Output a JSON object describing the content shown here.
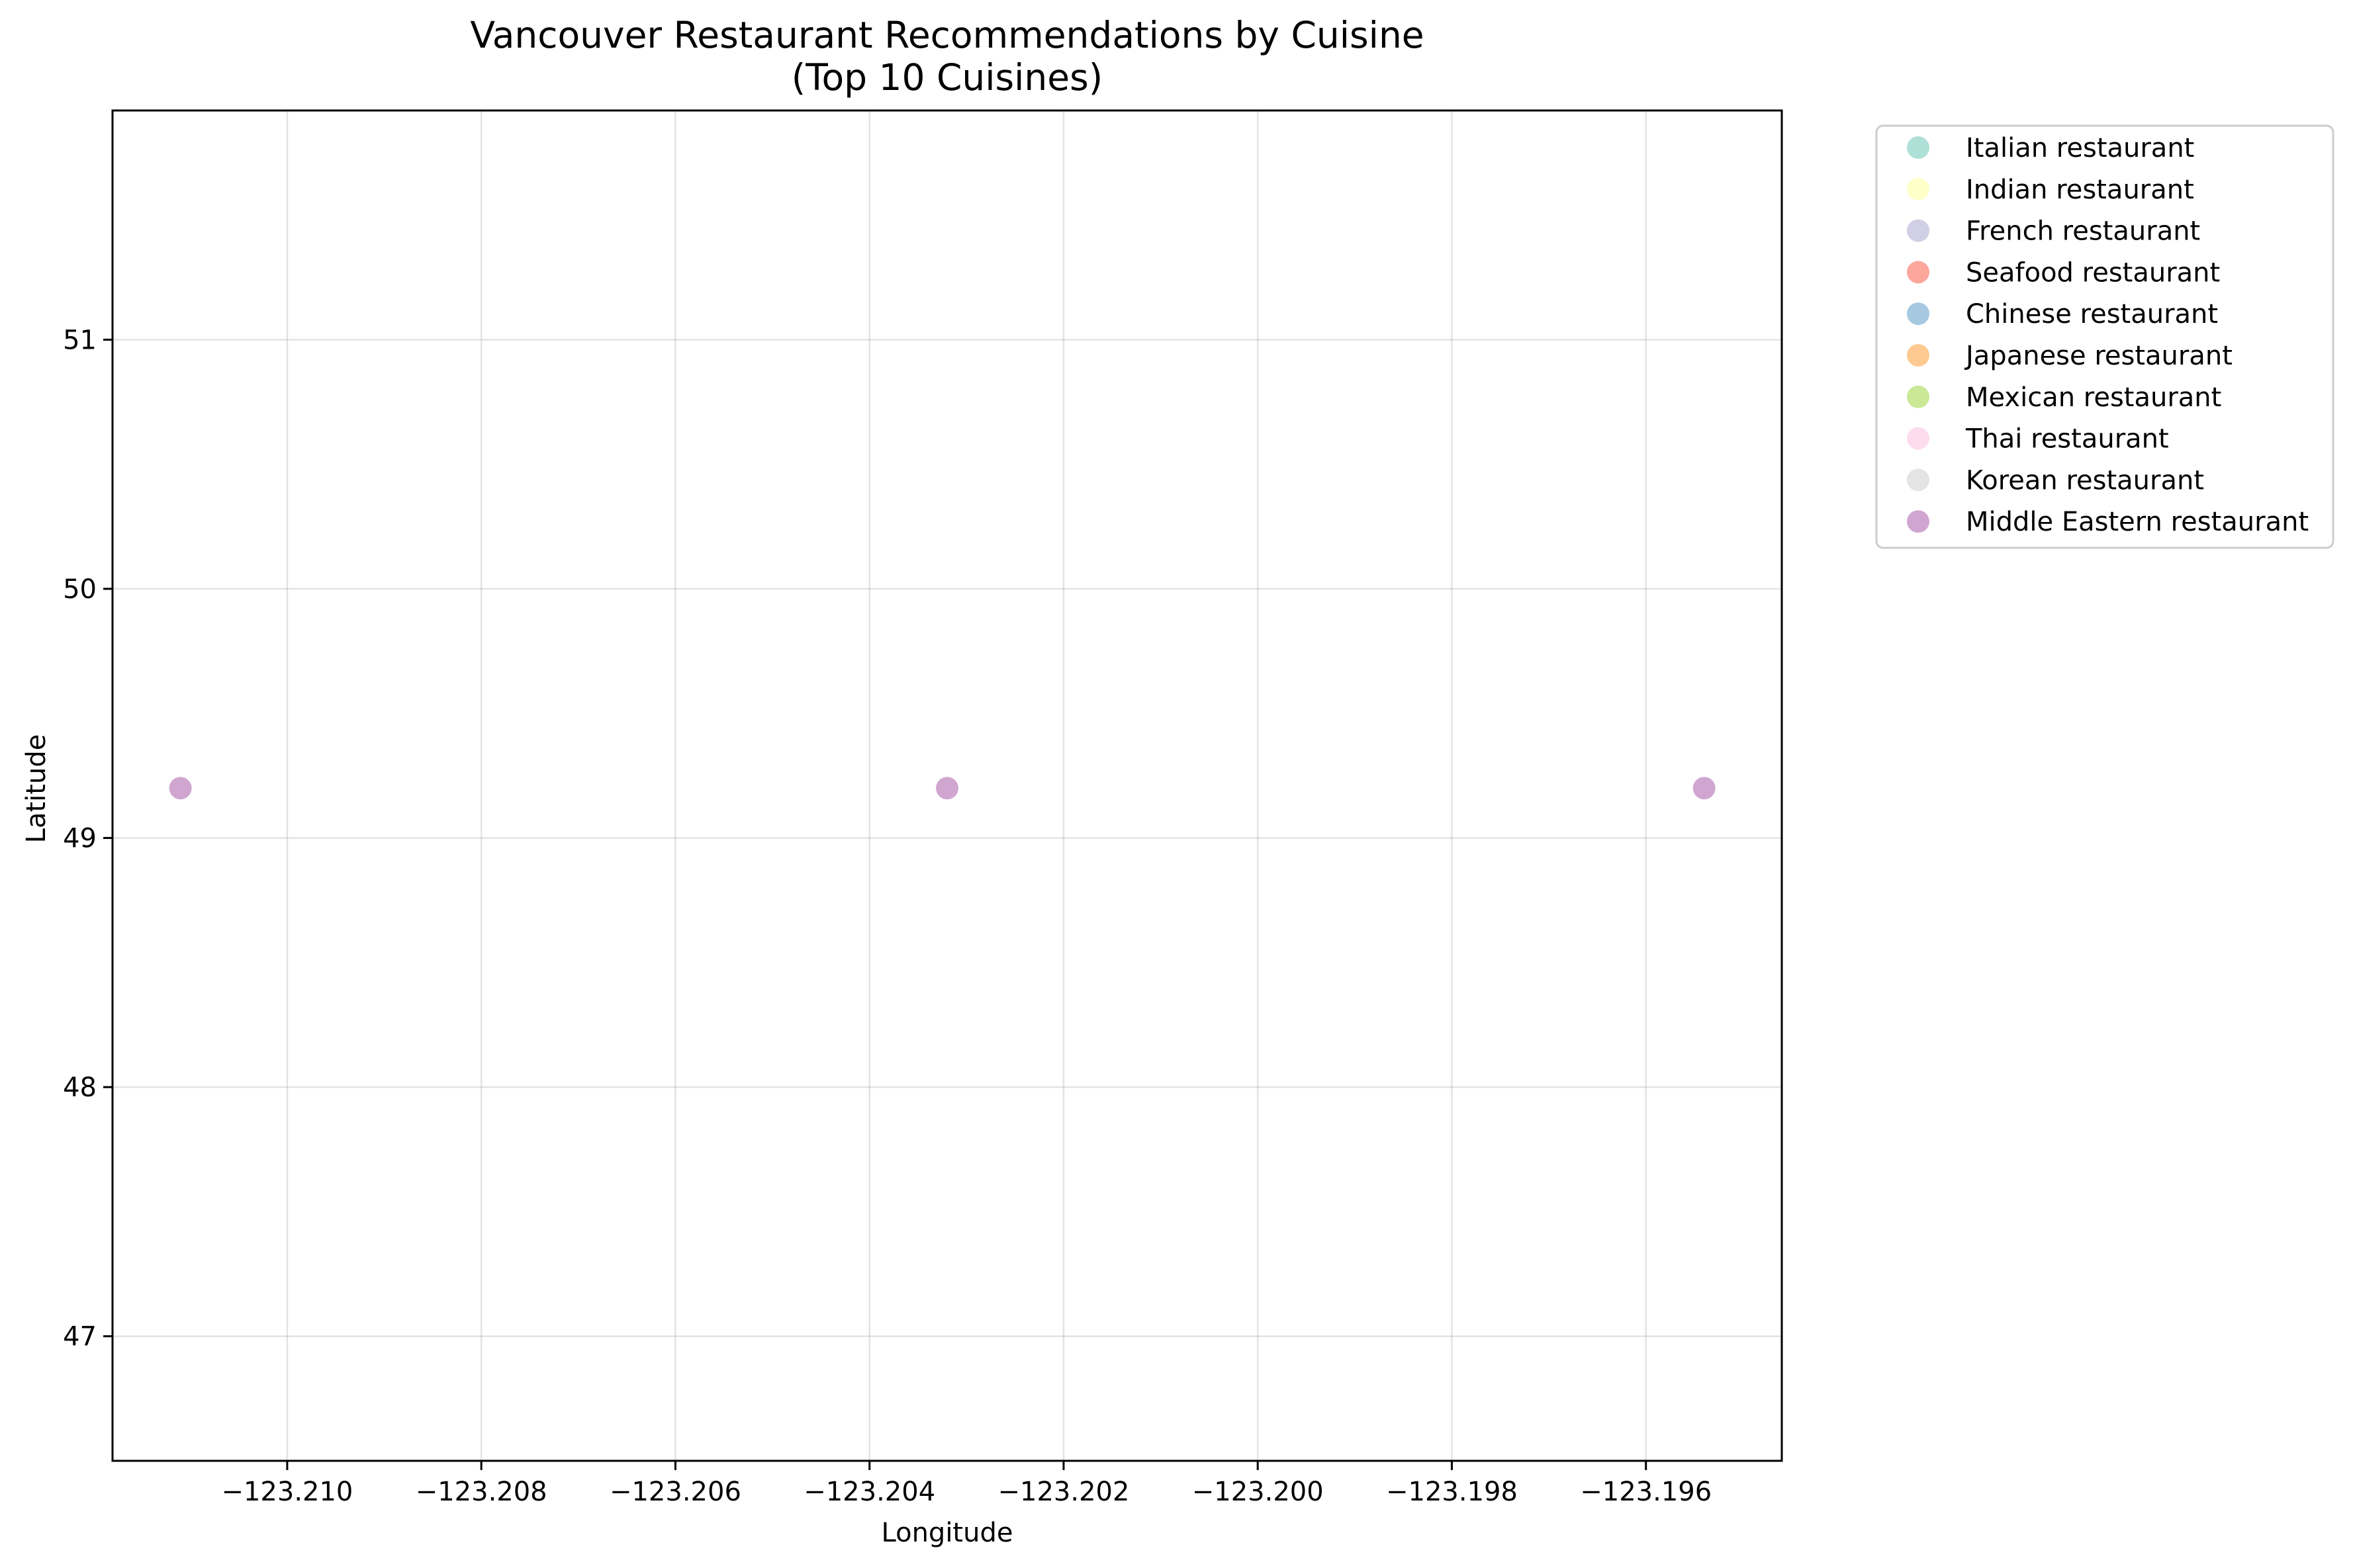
{
  "chart_data": {
    "type": "scatter",
    "title": "Vancouver Restaurant Recommendations by Cuisine",
    "subtitle": "(Top 10 Cuisines)",
    "xlabel": "Longitude",
    "ylabel": "Latitude",
    "xlim": [
      -123.2118,
      -123.1946
    ],
    "ylim": [
      46.5,
      51.92
    ],
    "xticks": [
      -123.21,
      -123.208,
      -123.206,
      -123.204,
      -123.202,
      -123.2,
      -123.198,
      -123.196
    ],
    "xtick_labels": [
      "−123.210",
      "−123.208",
      "−123.206",
      "−123.204",
      "−123.202",
      "−123.200",
      "−123.198",
      "−123.196"
    ],
    "yticks": [
      47,
      48,
      49,
      50,
      51
    ],
    "ytick_labels": [
      "47",
      "48",
      "49",
      "50",
      "51"
    ],
    "grid": true,
    "legend_position": "outside-right-top",
    "series": [
      {
        "name": "Italian restaurant",
        "color": "#8dd3c7",
        "points": []
      },
      {
        "name": "Indian restaurant",
        "color": "#ffffb3",
        "points": []
      },
      {
        "name": "French restaurant",
        "color": "#bebada",
        "points": []
      },
      {
        "name": "Seafood restaurant",
        "color": "#fb8072",
        "points": []
      },
      {
        "name": "Chinese restaurant",
        "color": "#80b1d3",
        "points": []
      },
      {
        "name": "Japanese restaurant",
        "color": "#fdb462",
        "points": []
      },
      {
        "name": "Mexican restaurant",
        "color": "#b3de69",
        "points": []
      },
      {
        "name": "Thai restaurant",
        "color": "#fccde5",
        "points": []
      },
      {
        "name": "Korean restaurant",
        "color": "#d9d9d9",
        "points": []
      },
      {
        "name": "Middle Eastern restaurant",
        "color": "#bc80bd",
        "points": [
          {
            "x": -123.2111,
            "y": 49.2
          },
          {
            "x": -123.2032,
            "y": 49.2
          },
          {
            "x": -123.1954,
            "y": 49.2
          }
        ]
      }
    ]
  }
}
